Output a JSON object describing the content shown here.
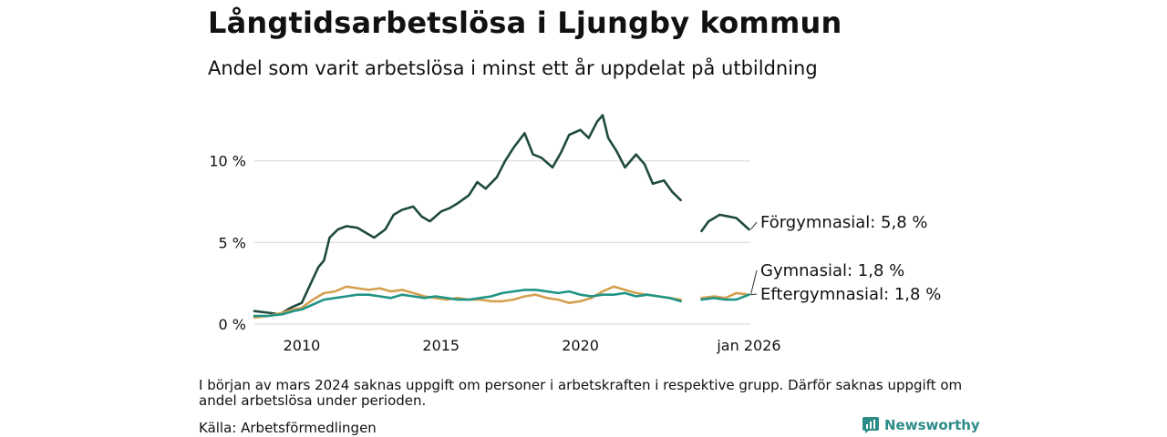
{
  "header": {
    "title": "Långtidsarbetslösa i Ljungby kommun",
    "subtitle": "Andel som varit arbetslösa i minst ett år uppdelat på utbildning"
  },
  "footer": {
    "note": "I början av mars 2024 saknas uppgift om personer i arbetskraften i respektive grupp. Därför saknas uppgift om andel arbetslösa under perioden.",
    "source": "Källa: Arbetsförmedlingen",
    "brand": "Newsworthy"
  },
  "chart_data": {
    "type": "line",
    "title": "Långtidsarbetslösa i Ljungby kommun",
    "subtitle": "Andel som varit arbetslösa i minst ett år uppdelat på utbildning",
    "xlabel": "",
    "ylabel": "",
    "xlim": [
      2008.3,
      2026.1
    ],
    "ylim": [
      0,
      13.5
    ],
    "grid": true,
    "yticks": [
      {
        "value": 0,
        "label": "0 %"
      },
      {
        "value": 5,
        "label": "5 %"
      },
      {
        "value": 10,
        "label": "10 %"
      }
    ],
    "xticks": [
      {
        "value": 2010,
        "label": "2010"
      },
      {
        "value": 2015,
        "label": "2015"
      },
      {
        "value": 2020,
        "label": "2020"
      },
      {
        "value": 2026.05,
        "label": "jan 2026"
      }
    ],
    "gap": [
      2023.7,
      2024.35
    ],
    "series": [
      {
        "name": "Förgymnasial",
        "label": "Förgymnasial: 5,8 %",
        "color": "#1e4a3f",
        "x": [
          2008.3,
          2008.8,
          2009.2,
          2009.6,
          2010.0,
          2010.3,
          2010.6,
          2010.8,
          2011.0,
          2011.3,
          2011.6,
          2012.0,
          2012.3,
          2012.6,
          2013.0,
          2013.3,
          2013.6,
          2014.0,
          2014.3,
          2014.6,
          2015.0,
          2015.3,
          2015.6,
          2016.0,
          2016.3,
          2016.6,
          2017.0,
          2017.3,
          2017.6,
          2018.0,
          2018.3,
          2018.6,
          2019.0,
          2019.3,
          2019.6,
          2020.0,
          2020.3,
          2020.6,
          2020.8,
          2021.0,
          2021.3,
          2021.6,
          2022.0,
          2022.3,
          2022.6,
          2023.0,
          2023.3,
          2023.6,
          2024.35,
          2024.6,
          2025.0,
          2025.3,
          2025.6,
          2026.05
        ],
        "values": [
          0.8,
          0.7,
          0.6,
          1.0,
          1.3,
          2.4,
          3.5,
          3.9,
          5.3,
          5.8,
          6.0,
          5.9,
          5.6,
          5.3,
          5.8,
          6.7,
          7.0,
          7.2,
          6.6,
          6.3,
          6.9,
          7.1,
          7.4,
          7.9,
          8.7,
          8.3,
          9.0,
          10.0,
          10.8,
          11.7,
          10.4,
          10.2,
          9.6,
          10.5,
          11.6,
          11.9,
          11.4,
          12.4,
          12.8,
          11.4,
          10.6,
          9.6,
          10.4,
          9.8,
          8.6,
          8.8,
          8.1,
          7.6,
          5.7,
          6.3,
          6.7,
          6.6,
          6.5,
          5.8
        ]
      },
      {
        "name": "Gymnasial",
        "label": "Gymnasial: 1,8 %",
        "color": "#d4a04f",
        "x": [
          2008.3,
          2008.8,
          2009.3,
          2009.7,
          2010.0,
          2010.4,
          2010.8,
          2011.2,
          2011.6,
          2012.0,
          2012.4,
          2012.8,
          2013.2,
          2013.6,
          2014.0,
          2014.4,
          2014.8,
          2015.2,
          2015.6,
          2016.0,
          2016.4,
          2016.8,
          2017.2,
          2017.6,
          2018.0,
          2018.4,
          2018.8,
          2019.2,
          2019.6,
          2020.0,
          2020.4,
          2020.8,
          2021.2,
          2021.6,
          2022.0,
          2022.4,
          2022.8,
          2023.2,
          2023.6,
          2024.35,
          2024.8,
          2025.2,
          2025.6,
          2026.05
        ],
        "values": [
          0.4,
          0.5,
          0.7,
          0.9,
          1.0,
          1.5,
          1.9,
          2.0,
          2.3,
          2.2,
          2.1,
          2.2,
          2.0,
          2.1,
          1.9,
          1.7,
          1.6,
          1.5,
          1.6,
          1.5,
          1.5,
          1.4,
          1.4,
          1.5,
          1.7,
          1.8,
          1.6,
          1.5,
          1.3,
          1.4,
          1.6,
          2.0,
          2.3,
          2.1,
          1.9,
          1.8,
          1.7,
          1.6,
          1.5,
          1.6,
          1.7,
          1.6,
          1.9,
          1.8
        ]
      },
      {
        "name": "Eftergymnasial",
        "label": "Eftergymnasial: 1,8 %",
        "color": "#1f9486",
        "x": [
          2008.3,
          2008.8,
          2009.3,
          2009.7,
          2010.0,
          2010.4,
          2010.8,
          2011.2,
          2011.6,
          2012.0,
          2012.4,
          2012.8,
          2013.2,
          2013.6,
          2014.0,
          2014.4,
          2014.8,
          2015.2,
          2015.6,
          2016.0,
          2016.4,
          2016.8,
          2017.2,
          2017.6,
          2018.0,
          2018.4,
          2018.8,
          2019.2,
          2019.6,
          2020.0,
          2020.4,
          2020.8,
          2021.2,
          2021.6,
          2022.0,
          2022.4,
          2022.8,
          2023.2,
          2023.6,
          2024.35,
          2024.8,
          2025.2,
          2025.6,
          2026.05
        ],
        "values": [
          0.5,
          0.5,
          0.6,
          0.8,
          0.9,
          1.2,
          1.5,
          1.6,
          1.7,
          1.8,
          1.8,
          1.7,
          1.6,
          1.8,
          1.7,
          1.6,
          1.7,
          1.6,
          1.5,
          1.5,
          1.6,
          1.7,
          1.9,
          2.0,
          2.1,
          2.1,
          2.0,
          1.9,
          2.0,
          1.8,
          1.7,
          1.8,
          1.8,
          1.9,
          1.7,
          1.8,
          1.7,
          1.6,
          1.4,
          1.5,
          1.6,
          1.5,
          1.5,
          1.8
        ]
      }
    ]
  }
}
